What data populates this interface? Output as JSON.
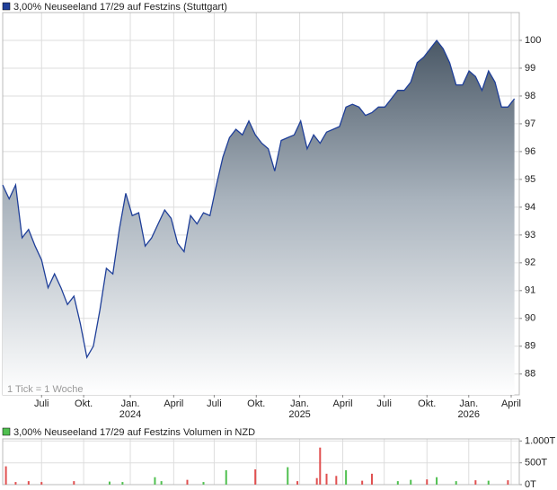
{
  "chart_data": [
    {
      "type": "area",
      "title": "3,00% Neuseeland 17/29 auf Festzins (Stuttgart)",
      "note": "1 Tick = 1 Woche",
      "color": "#1f3f99",
      "x": [
        0,
        2,
        4,
        6,
        8,
        10,
        12,
        14,
        16,
        18,
        20,
        22,
        24,
        26,
        28,
        30,
        32,
        34,
        36,
        38,
        40,
        42,
        44,
        46,
        48,
        50,
        52,
        54,
        56,
        58,
        60,
        62,
        64,
        66,
        68,
        70,
        72,
        74,
        76,
        78,
        80,
        82,
        84,
        86,
        88,
        90,
        92,
        94,
        96,
        98,
        100,
        102,
        104,
        106,
        108,
        110,
        112,
        114,
        116,
        118,
        120,
        122,
        124,
        126,
        128,
        130,
        132,
        134,
        136,
        138,
        140,
        142,
        144,
        146,
        148,
        150,
        152,
        154,
        156,
        158
      ],
      "values": [
        94.8,
        94.3,
        94.8,
        92.9,
        93.2,
        92.6,
        92.1,
        91.1,
        91.6,
        91.1,
        90.5,
        90.8,
        89.8,
        88.6,
        89.0,
        90.3,
        91.8,
        91.6,
        93.2,
        94.5,
        93.7,
        93.8,
        92.6,
        92.9,
        93.4,
        93.9,
        93.6,
        92.7,
        92.4,
        93.7,
        93.4,
        93.8,
        93.7,
        94.8,
        95.8,
        96.5,
        96.8,
        96.6,
        97.1,
        96.6,
        96.3,
        96.1,
        95.3,
        96.4,
        96.5,
        96.6,
        97.1,
        96.1,
        96.6,
        96.3,
        96.7,
        96.8,
        96.9,
        97.6,
        97.7,
        97.6,
        97.3,
        97.4,
        97.6,
        97.6,
        97.9,
        98.2,
        98.2,
        98.5,
        99.2,
        99.4,
        99.7,
        100.0,
        99.7,
        99.2,
        98.4,
        98.4,
        98.9,
        98.7,
        98.2,
        98.9,
        98.5,
        97.6,
        97.6,
        97.9
      ],
      "xlim": [
        0,
        159.5
      ],
      "ylim": [
        87.25,
        101
      ],
      "yticks": [
        88,
        89,
        90,
        91,
        92,
        93,
        94,
        95,
        96,
        97,
        98,
        99,
        100
      ],
      "xticks": [
        {
          "value": 12,
          "label": "Juli"
        },
        {
          "value": 25,
          "label": "Okt."
        },
        {
          "value": 39.4,
          "label": "Jan.",
          "sublabel": "2024"
        },
        {
          "value": 52.8,
          "label": "April"
        },
        {
          "value": 65.3,
          "label": "Juli"
        },
        {
          "value": 78.3,
          "label": "Okt."
        },
        {
          "value": 91.7,
          "label": "Jan.",
          "sublabel": "2025"
        },
        {
          "value": 105,
          "label": "April"
        },
        {
          "value": 117.8,
          "label": "Juli"
        },
        {
          "value": 131,
          "label": "Okt."
        },
        {
          "value": 143.9,
          "label": "Jan.",
          "sublabel": "2026"
        },
        {
          "value": 157,
          "label": "April"
        }
      ],
      "grid": true
    },
    {
      "type": "bar",
      "title": "3,00% Neuseeland 17/29 auf Festzins Volumen in NZD",
      "x": [
        1,
        4,
        8,
        12,
        22,
        33,
        37,
        47,
        49,
        57,
        62,
        69,
        78,
        88,
        91,
        97,
        98,
        100,
        103,
        106,
        111,
        114,
        122,
        126,
        131,
        134,
        140,
        146,
        150,
        156
      ],
      "values": [
        420,
        60,
        80,
        60,
        80,
        70,
        60,
        170,
        80,
        110,
        60,
        330,
        350,
        400,
        80,
        150,
        850,
        250,
        200,
        330,
        90,
        250,
        80,
        110,
        120,
        170,
        80,
        100,
        90,
        100
      ],
      "colors": [
        "#e05050",
        "#e05050",
        "#e05050",
        "#e05050",
        "#e05050",
        "#50c050",
        "#50c050",
        "#50c050",
        "#50c050",
        "#e05050",
        "#50c050",
        "#50c050",
        "#e05050",
        "#50c050",
        "#e05050",
        "#e05050",
        "#e05050",
        "#e05050",
        "#e05050",
        "#50c050",
        "#e05050",
        "#e05050",
        "#50c050",
        "#50c050",
        "#e05050",
        "#50c050",
        "#50c050",
        "#e05050",
        "#50c050",
        "#e05050"
      ],
      "xlim": [
        0,
        159.5
      ],
      "ylim": [
        0,
        1050
      ],
      "yticks": [
        {
          "value": 0,
          "label": "0T"
        },
        {
          "value": 500,
          "label": "500T"
        },
        {
          "value": 1000,
          "label": "1.000T"
        }
      ],
      "grid": true
    }
  ]
}
